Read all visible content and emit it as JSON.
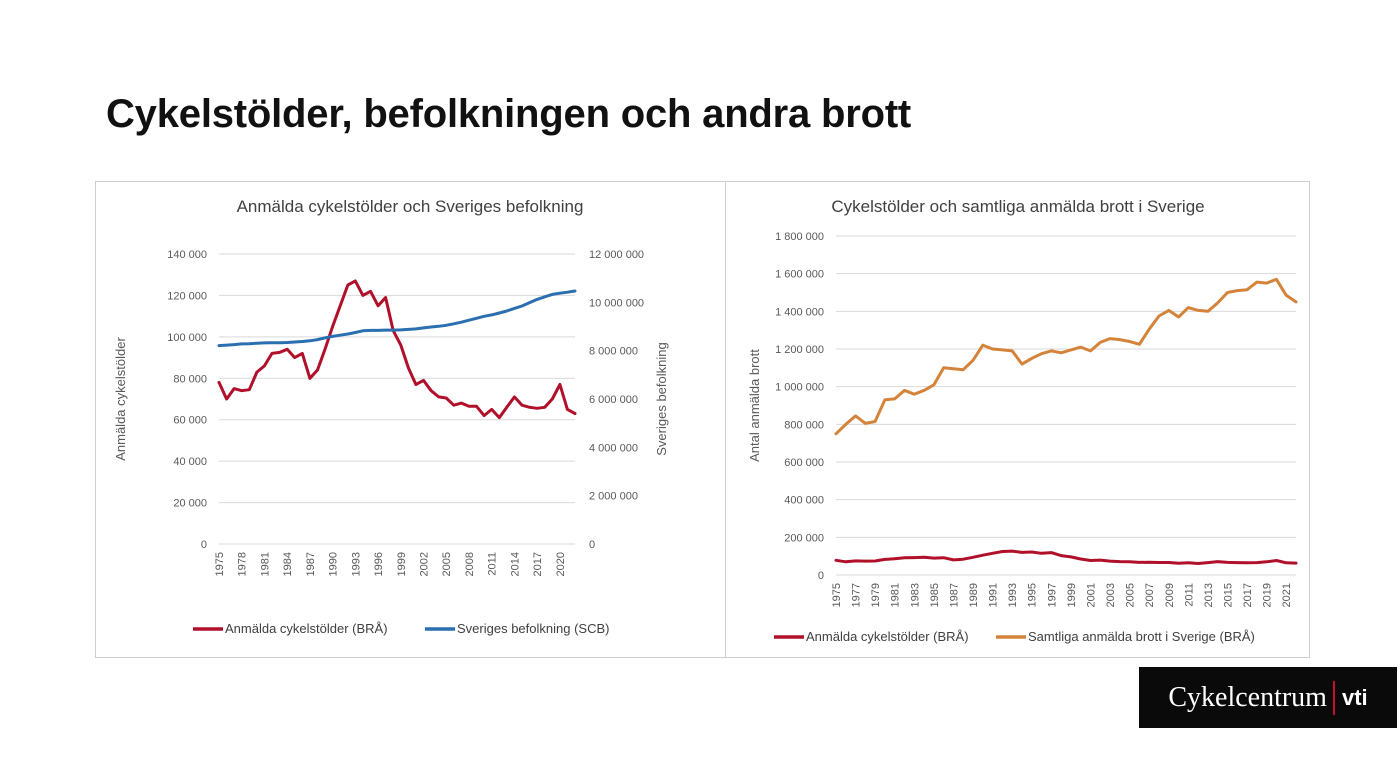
{
  "slide": {
    "title": "Cykelstölder, befolkningen och andra brott"
  },
  "brand": {
    "name": "Cykelcentrum",
    "suffix": "vti",
    "separator_color": "#c8102e"
  },
  "chart_data": [
    {
      "type": "line",
      "title": "Anmälda cykelstölder och Sveriges befolkning",
      "ylabel": "Anmälda cykelstölder",
      "y2label": "Sveriges befolkning",
      "ylim": [
        0,
        140000
      ],
      "y2lim": [
        0,
        12000000
      ],
      "yticks": [
        0,
        20000,
        40000,
        60000,
        80000,
        100000,
        120000,
        140000
      ],
      "yticklabels": [
        "0",
        "20 000",
        "40 000",
        "60 000",
        "80 000",
        "100 000",
        "120 000",
        "140 000"
      ],
      "y2ticks": [
        0,
        2000000,
        4000000,
        6000000,
        8000000,
        10000000,
        12000000
      ],
      "y2ticklabels": [
        "0",
        "2 000 000",
        "4 000 000",
        "6 000 000",
        "8 000 000",
        "10 000 000",
        "12 000 000"
      ],
      "x": [
        1975,
        1976,
        1977,
        1978,
        1979,
        1980,
        1981,
        1982,
        1983,
        1984,
        1985,
        1986,
        1987,
        1988,
        1989,
        1990,
        1991,
        1992,
        1993,
        1994,
        1995,
        1996,
        1997,
        1998,
        1999,
        2000,
        2001,
        2002,
        2003,
        2004,
        2005,
        2006,
        2007,
        2008,
        2009,
        2010,
        2011,
        2012,
        2013,
        2014,
        2015,
        2016,
        2017,
        2018,
        2019,
        2020,
        2021,
        2022
      ],
      "xticks": [
        1975,
        1978,
        1981,
        1984,
        1987,
        1990,
        1993,
        1996,
        1999,
        2002,
        2005,
        2008,
        2011,
        2014,
        2017,
        2020
      ],
      "grid": true,
      "legend": "bottom",
      "series": [
        {
          "name": "Anmälda cykelstölder (BRÅ)",
          "axis": "left",
          "color": "#b0102a",
          "values": [
            78000,
            70000,
            75000,
            74000,
            74500,
            83000,
            86000,
            92000,
            92500,
            94000,
            90000,
            92000,
            80000,
            84000,
            94000,
            105000,
            115000,
            125000,
            127000,
            120000,
            122000,
            115000,
            119000,
            103000,
            96000,
            85000,
            77000,
            79000,
            74000,
            71000,
            70500,
            67000,
            68000,
            66500,
            66500,
            62000,
            65000,
            61000,
            66000,
            71000,
            67000,
            66000,
            65500,
            66000,
            70000,
            77000,
            65000,
            63000
          ]
        },
        {
          "name": "Sveriges befolkning (SCB)",
          "axis": "right",
          "color": "#2a6faf",
          "values": [
            8210000,
            8230000,
            8250000,
            8280000,
            8290000,
            8310000,
            8320000,
            8330000,
            8330000,
            8340000,
            8360000,
            8380000,
            8410000,
            8460000,
            8530000,
            8590000,
            8640000,
            8690000,
            8750000,
            8820000,
            8840000,
            8840000,
            8850000,
            8850000,
            8860000,
            8880000,
            8900000,
            8940000,
            8980000,
            9010000,
            9050000,
            9110000,
            9180000,
            9260000,
            9340000,
            9420000,
            9480000,
            9560000,
            9640000,
            9750000,
            9850000,
            9990000,
            10120000,
            10230000,
            10330000,
            10380000,
            10420000,
            10470000
          ]
        }
      ]
    },
    {
      "type": "line",
      "title": "Cykelstölder och samtliga anmälda brott i Sverige",
      "ylabel": "Antal anmälda brott",
      "ylim": [
        0,
        1800000
      ],
      "yticks": [
        0,
        200000,
        400000,
        600000,
        800000,
        1000000,
        1200000,
        1400000,
        1600000,
        1800000
      ],
      "yticklabels": [
        "0",
        "200 000",
        "400 000",
        "600 000",
        "800 000",
        "1 000 000",
        "1 200 000",
        "1 400 000",
        "1 600 000",
        "1 800 000"
      ],
      "x": [
        1975,
        1976,
        1977,
        1978,
        1979,
        1980,
        1981,
        1982,
        1983,
        1984,
        1985,
        1986,
        1987,
        1988,
        1989,
        1990,
        1991,
        1992,
        1993,
        1994,
        1995,
        1996,
        1997,
        1998,
        1999,
        2000,
        2001,
        2002,
        2003,
        2004,
        2005,
        2006,
        2007,
        2008,
        2009,
        2010,
        2011,
        2012,
        2013,
        2014,
        2015,
        2016,
        2017,
        2018,
        2019,
        2020,
        2021,
        2022
      ],
      "xticks": [
        1975,
        1977,
        1979,
        1981,
        1983,
        1985,
        1987,
        1989,
        1991,
        1993,
        1995,
        1997,
        1999,
        2001,
        2003,
        2005,
        2007,
        2009,
        2011,
        2013,
        2015,
        2017,
        2019,
        2021
      ],
      "grid": true,
      "legend": "bottom",
      "series": [
        {
          "name": "Anmälda cykelstölder (BRÅ)",
          "axis": "left",
          "color": "#b0102a",
          "values": [
            78000,
            70000,
            75000,
            74000,
            74500,
            83000,
            86000,
            92000,
            92500,
            94000,
            90000,
            92000,
            80000,
            84000,
            94000,
            105000,
            115000,
            125000,
            127000,
            120000,
            122000,
            115000,
            119000,
            103000,
            96000,
            85000,
            77000,
            79000,
            74000,
            71000,
            70500,
            67000,
            68000,
            66500,
            66500,
            62000,
            65000,
            61000,
            66000,
            71000,
            67000,
            66000,
            65500,
            66000,
            70000,
            77000,
            65000,
            63000
          ]
        },
        {
          "name": "Samtliga anmälda brott i Sverige (BRÅ)",
          "axis": "left",
          "color": "#d4843a",
          "values": [
            750000,
            800000,
            845000,
            805000,
            815000,
            930000,
            935000,
            980000,
            960000,
            980000,
            1010000,
            1100000,
            1095000,
            1090000,
            1140000,
            1220000,
            1200000,
            1195000,
            1190000,
            1120000,
            1150000,
            1175000,
            1190000,
            1180000,
            1195000,
            1210000,
            1190000,
            1235000,
            1255000,
            1250000,
            1240000,
            1225000,
            1305000,
            1375000,
            1405000,
            1370000,
            1420000,
            1405000,
            1400000,
            1445000,
            1500000,
            1510000,
            1515000,
            1555000,
            1550000,
            1570000,
            1485000,
            1450000
          ]
        }
      ]
    }
  ]
}
